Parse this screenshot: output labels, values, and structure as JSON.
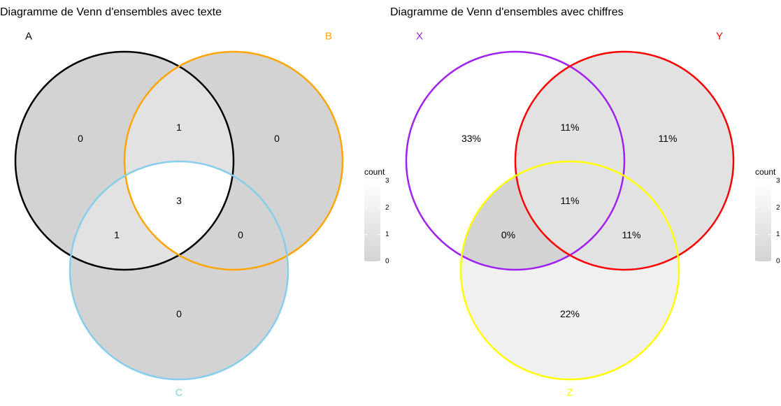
{
  "colors": {
    "fill_low": "#d3d3d3",
    "fill_high": "#ffffff",
    "background": "#ffffff"
  },
  "panels": [
    {
      "title": "Diagramme de Venn d'ensembles avec texte",
      "sets": [
        {
          "name": "A",
          "color": "#000000"
        },
        {
          "name": "B",
          "color": "#ffa500"
        },
        {
          "name": "C",
          "color": "#87ceeb"
        }
      ],
      "regions": {
        "only_1": {
          "label": "0",
          "count": 0
        },
        "only_2": {
          "label": "0",
          "count": 0
        },
        "only_3": {
          "label": "0",
          "count": 0
        },
        "pair_12": {
          "label": "1",
          "count": 1
        },
        "pair_13": {
          "label": "1",
          "count": 1
        },
        "pair_23": {
          "label": "0",
          "count": 0
        },
        "all_123": {
          "label": "3",
          "count": 3
        }
      },
      "legend": {
        "title": "count",
        "ticks": [
          "3",
          "2",
          "1",
          "0"
        ],
        "min": 0,
        "max": 3
      }
    },
    {
      "title": "Diagramme de Venn d'ensembles avec chiffres",
      "sets": [
        {
          "name": "X",
          "color": "#a020f0"
        },
        {
          "name": "Y",
          "color": "#ff0000"
        },
        {
          "name": "Z",
          "color": "#ffff00"
        }
      ],
      "regions": {
        "only_1": {
          "label": "33%",
          "count": 3
        },
        "only_2": {
          "label": "11%",
          "count": 1
        },
        "only_3": {
          "label": "22%",
          "count": 2
        },
        "pair_12": {
          "label": "11%",
          "count": 1
        },
        "pair_13": {
          "label": "0%",
          "count": 0
        },
        "pair_23": {
          "label": "11%",
          "count": 1
        },
        "all_123": {
          "label": "11%",
          "count": 1
        }
      },
      "legend": {
        "title": "count",
        "ticks": [
          "3",
          "2",
          "1",
          "0"
        ],
        "min": 0,
        "max": 3
      }
    }
  ]
}
